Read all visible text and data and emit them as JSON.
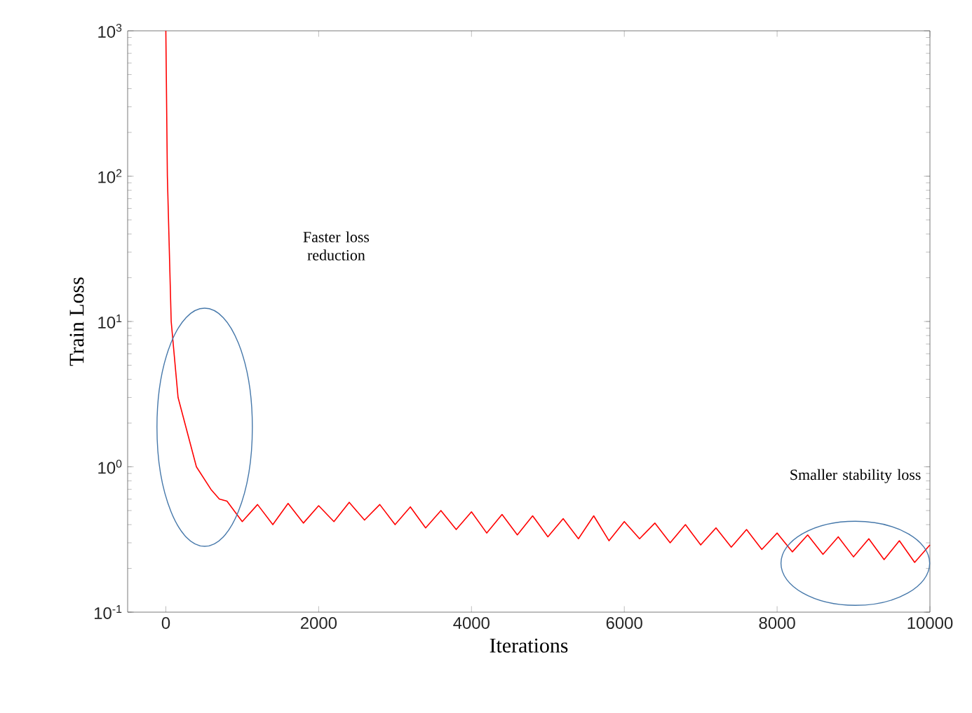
{
  "chart_data": {
    "type": "line",
    "xlabel": "Iterations",
    "ylabel": "Train Loss",
    "log": "y",
    "color": "#ff0000",
    "marker": "none",
    "line_style": "solid",
    "x": [
      0,
      20,
      70,
      160,
      400,
      590,
      700,
      800,
      1000,
      1200,
      1400,
      1600,
      1800,
      2000,
      2200,
      2400,
      2600,
      2800,
      3000,
      3200,
      3400,
      3600,
      3800,
      4000,
      4200,
      4400,
      4600,
      4800,
      5000,
      5200,
      5400,
      5600,
      5800,
      6000,
      6200,
      6400,
      6600,
      6800,
      7000,
      7200,
      7400,
      7600,
      7800,
      8000,
      8200,
      8400,
      8600,
      8800,
      9000,
      9200,
      9400,
      9600,
      9800,
      10000
    ],
    "values": [
      1000,
      100,
      10,
      3,
      1,
      0.7,
      0.6,
      0.58,
      0.42,
      0.55,
      0.4,
      0.56,
      0.41,
      0.54,
      0.42,
      0.57,
      0.43,
      0.55,
      0.4,
      0.53,
      0.38,
      0.5,
      0.37,
      0.49,
      0.35,
      0.47,
      0.34,
      0.46,
      0.33,
      0.44,
      0.32,
      0.46,
      0.31,
      0.42,
      0.32,
      0.41,
      0.3,
      0.4,
      0.29,
      0.38,
      0.28,
      0.37,
      0.27,
      0.35,
      0.26,
      0.34,
      0.25,
      0.33,
      0.24,
      0.32,
      0.23,
      0.31,
      0.22,
      0.29
    ],
    "xlim": [
      -500,
      10000
    ],
    "xticks": [
      0,
      2000,
      4000,
      6000,
      8000,
      10000
    ],
    "ylim": [
      0.1,
      1000
    ],
    "yticks": [
      {
        "value": 0.1,
        "label": "10$^{-1}$"
      },
      {
        "value": 1,
        "label": "10$^{0}$"
      },
      {
        "value": 10,
        "label": "10$^{1}$"
      },
      {
        "value": 100,
        "label": "10$^{2}$"
      },
      {
        "value": 1000,
        "label": "10$^{3}$"
      }
    ],
    "annotations": [
      "Faster loss reduction",
      "Smaller stability loss"
    ]
  }
}
